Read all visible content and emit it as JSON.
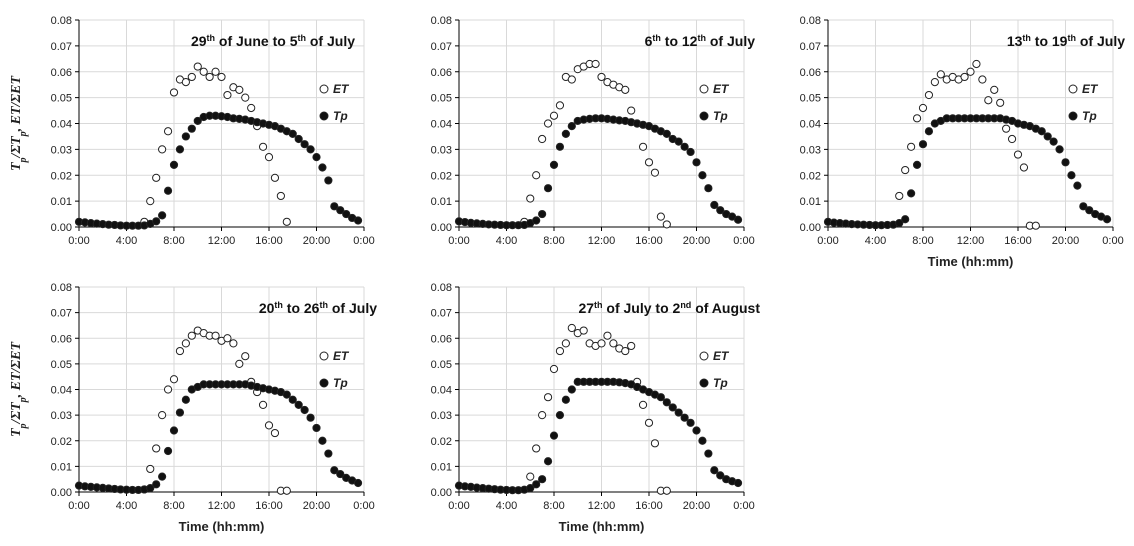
{
  "chart_data": [
    {
      "type": "scatter",
      "title": "29th of June to 5th of July",
      "title_parts": [
        {
          "text": "29"
        },
        {
          "text": "th",
          "sup": true
        },
        {
          "text": " of June to 5"
        },
        {
          "text": "th",
          "sup": true
        },
        {
          "text": " of July"
        }
      ],
      "xlabel": "",
      "ylabel": "Tp/ΣTp, ET/ΣET",
      "ylabel_parts": [
        {
          "text": "T"
        },
        {
          "text": "p",
          "sub": true
        },
        {
          "text": "/ΣT"
        },
        {
          "text": "p",
          "sub": true
        },
        {
          "text": ", ET/ΣET"
        }
      ],
      "xlim": [
        0,
        24
      ],
      "ylim": [
        0,
        0.08
      ],
      "xticks": [
        "0:00",
        "4:00",
        "8:00",
        "12:00",
        "16:00",
        "20:00",
        "0:00"
      ],
      "yticks": [
        "0.00",
        "0.01",
        "0.02",
        "0.03",
        "0.04",
        "0.05",
        "0.06",
        "0.07",
        "0.08"
      ],
      "grid": true,
      "legend": "right",
      "series": [
        {
          "name": "ET",
          "marker": "open-circle",
          "x": [
            5.5,
            6.0,
            6.5,
            7.0,
            7.5,
            8.0,
            8.5,
            9.0,
            9.5,
            10.0,
            10.5,
            11.0,
            11.5,
            12.0,
            12.5,
            13.0,
            13.5,
            14.0,
            14.5,
            15.0,
            15.5,
            16.0,
            16.5,
            17.0,
            17.5
          ],
          "y": [
            0.002,
            0.01,
            0.019,
            0.03,
            0.037,
            0.052,
            0.057,
            0.056,
            0.058,
            0.062,
            0.06,
            0.058,
            0.06,
            0.058,
            0.051,
            0.054,
            0.053,
            0.05,
            0.046,
            0.039,
            0.031,
            0.027,
            0.019,
            0.012,
            0.002
          ]
        },
        {
          "name": "Tp",
          "marker": "filled-circle",
          "x": [
            0,
            0.5,
            1,
            1.5,
            2,
            2.5,
            3,
            3.5,
            4,
            4.5,
            5,
            5.5,
            6,
            6.5,
            7,
            7.5,
            8,
            8.5,
            9,
            9.5,
            10,
            10.5,
            11,
            11.5,
            12,
            12.5,
            13,
            13.5,
            14,
            14.5,
            15,
            15.5,
            16,
            16.5,
            17,
            17.5,
            18,
            18.5,
            19,
            19.5,
            20,
            20.5,
            21,
            21.5,
            22,
            22.5,
            23,
            23.5
          ],
          "y": [
            0.002,
            0.0018,
            0.0015,
            0.0013,
            0.0011,
            0.0009,
            0.0008,
            0.0006,
            0.0005,
            0.0005,
            0.0005,
            0.0006,
            0.0012,
            0.0022,
            0.0045,
            0.014,
            0.024,
            0.03,
            0.035,
            0.038,
            0.041,
            0.0425,
            0.043,
            0.043,
            0.0428,
            0.0425,
            0.042,
            0.0418,
            0.0415,
            0.041,
            0.0405,
            0.04,
            0.0395,
            0.039,
            0.038,
            0.037,
            0.036,
            0.034,
            0.032,
            0.03,
            0.027,
            0.023,
            0.018,
            0.008,
            0.0065,
            0.005,
            0.0035,
            0.0025
          ]
        }
      ]
    },
    {
      "type": "scatter",
      "title": "6th to 12th of July",
      "title_parts": [
        {
          "text": "6"
        },
        {
          "text": "th",
          "sup": true
        },
        {
          "text": " to 12"
        },
        {
          "text": "th",
          "sup": true
        },
        {
          "text": " of July"
        }
      ],
      "xlabel": "",
      "ylabel": "",
      "xlim": [
        0,
        24
      ],
      "ylim": [
        0,
        0.08
      ],
      "xticks": [
        "0:00",
        "4:00",
        "8:00",
        "12:00",
        "16:00",
        "20:00",
        "0:00"
      ],
      "yticks": [
        "0.00",
        "0.01",
        "0.02",
        "0.03",
        "0.04",
        "0.05",
        "0.06",
        "0.07",
        "0.08"
      ],
      "grid": true,
      "legend": "right",
      "series": [
        {
          "name": "ET",
          "marker": "open-circle",
          "x": [
            5.5,
            6.0,
            6.5,
            7.0,
            7.5,
            8.0,
            8.5,
            9.0,
            9.5,
            10.0,
            10.5,
            11.0,
            11.5,
            12.0,
            12.5,
            13.0,
            13.5,
            14.0,
            14.5,
            15.0,
            15.5,
            16.0,
            16.5,
            17.0,
            17.5
          ],
          "y": [
            0.002,
            0.011,
            0.02,
            0.034,
            0.04,
            0.043,
            0.047,
            0.058,
            0.057,
            0.061,
            0.062,
            0.063,
            0.063,
            0.058,
            0.056,
            0.055,
            0.054,
            0.053,
            0.045,
            0.04,
            0.031,
            0.025,
            0.021,
            0.004,
            0.001
          ]
        },
        {
          "name": "Tp",
          "marker": "filled-circle",
          "x": [
            0,
            0.5,
            1,
            1.5,
            2,
            2.5,
            3,
            3.5,
            4,
            4.5,
            5,
            5.5,
            6,
            6.5,
            7,
            7.5,
            8,
            8.5,
            9,
            9.5,
            10,
            10.5,
            11,
            11.5,
            12,
            12.5,
            13,
            13.5,
            14,
            14.5,
            15,
            15.5,
            16,
            16.5,
            17,
            17.5,
            18,
            18.5,
            19,
            19.5,
            20,
            20.5,
            21,
            21.5,
            22,
            22.5,
            23,
            23.5
          ],
          "y": [
            0.0022,
            0.0019,
            0.0016,
            0.0014,
            0.0012,
            0.001,
            0.0009,
            0.0008,
            0.0007,
            0.0007,
            0.0007,
            0.0008,
            0.0015,
            0.0025,
            0.005,
            0.015,
            0.024,
            0.031,
            0.036,
            0.039,
            0.041,
            0.0415,
            0.0418,
            0.042,
            0.042,
            0.0418,
            0.0415,
            0.0412,
            0.041,
            0.0405,
            0.04,
            0.0395,
            0.039,
            0.038,
            0.037,
            0.036,
            0.034,
            0.033,
            0.031,
            0.029,
            0.025,
            0.02,
            0.015,
            0.0085,
            0.0065,
            0.005,
            0.004,
            0.0028
          ]
        }
      ]
    },
    {
      "type": "scatter",
      "title": "13th to 19th of July",
      "title_parts": [
        {
          "text": "13"
        },
        {
          "text": "th",
          "sup": true
        },
        {
          "text": " to 19"
        },
        {
          "text": "th",
          "sup": true
        },
        {
          "text": " of July"
        }
      ],
      "xlabel": "Time (hh:mm)",
      "ylabel": "",
      "xlim": [
        0,
        24
      ],
      "ylim": [
        0,
        0.08
      ],
      "xticks": [
        "0:00",
        "4:00",
        "8:00",
        "12:00",
        "16:00",
        "20:00",
        "0:00"
      ],
      "yticks": [
        "0.00",
        "0.01",
        "0.02",
        "0.03",
        "0.04",
        "0.05",
        "0.06",
        "0.07",
        "0.08"
      ],
      "grid": true,
      "legend": "right",
      "series": [
        {
          "name": "ET",
          "marker": "open-circle",
          "x": [
            6.0,
            6.5,
            7.0,
            7.5,
            8.0,
            8.5,
            9.0,
            9.5,
            10.0,
            10.5,
            11.0,
            11.5,
            12.0,
            12.5,
            13.0,
            13.5,
            14.0,
            14.5,
            15.0,
            15.5,
            16.0,
            16.5,
            17.0,
            17.5
          ],
          "y": [
            0.012,
            0.022,
            0.031,
            0.042,
            0.046,
            0.051,
            0.056,
            0.059,
            0.057,
            0.058,
            0.057,
            0.058,
            0.06,
            0.063,
            0.057,
            0.049,
            0.053,
            0.048,
            0.038,
            0.034,
            0.028,
            0.023,
            0.0005,
            0.0005
          ]
        },
        {
          "name": "Tp",
          "marker": "filled-circle",
          "x": [
            0,
            0.5,
            1,
            1.5,
            2,
            2.5,
            3,
            3.5,
            4,
            4.5,
            5,
            5.5,
            6,
            6.5,
            7,
            7.5,
            8,
            8.5,
            9,
            9.5,
            10,
            10.5,
            11,
            11.5,
            12,
            12.5,
            13,
            13.5,
            14,
            14.5,
            15,
            15.5,
            16,
            16.5,
            17,
            17.5,
            18,
            18.5,
            19,
            19.5,
            20,
            20.5,
            21,
            21.5,
            22,
            22.5,
            23,
            23.5
          ],
          "y": [
            0.002,
            0.0017,
            0.0015,
            0.0013,
            0.0011,
            0.001,
            0.0009,
            0.0008,
            0.0007,
            0.0007,
            0.0008,
            0.0009,
            0.0015,
            0.003,
            0.013,
            0.024,
            0.032,
            0.037,
            0.04,
            0.041,
            0.042,
            0.042,
            0.042,
            0.042,
            0.042,
            0.042,
            0.042,
            0.042,
            0.042,
            0.042,
            0.0415,
            0.041,
            0.04,
            0.0395,
            0.039,
            0.038,
            0.037,
            0.035,
            0.033,
            0.03,
            0.025,
            0.02,
            0.016,
            0.008,
            0.0065,
            0.005,
            0.004,
            0.003
          ]
        }
      ]
    },
    {
      "type": "scatter",
      "title": "20th to 26th of July",
      "title_parts": [
        {
          "text": "20"
        },
        {
          "text": "th",
          "sup": true
        },
        {
          "text": " to 26"
        },
        {
          "text": "th",
          "sup": true
        },
        {
          "text": " of July"
        }
      ],
      "xlabel": "Time (hh:mm)",
      "ylabel": "Tp/ΣTp, ET/ΣET",
      "ylabel_parts": [
        {
          "text": "T"
        },
        {
          "text": "p",
          "sub": true
        },
        {
          "text": "/ΣT"
        },
        {
          "text": "p",
          "sub": true
        },
        {
          "text": ", ET/ΣET"
        }
      ],
      "xlim": [
        0,
        24
      ],
      "ylim": [
        0,
        0.08
      ],
      "xticks": [
        "0:00",
        "4:00",
        "8:00",
        "12:00",
        "16:00",
        "20:00",
        "0:00"
      ],
      "yticks": [
        "0.00",
        "0.01",
        "0.02",
        "0.03",
        "0.04",
        "0.05",
        "0.06",
        "0.07",
        "0.08"
      ],
      "grid": true,
      "legend": "right",
      "series": [
        {
          "name": "ET",
          "marker": "open-circle",
          "x": [
            5.5,
            6.0,
            6.5,
            7.0,
            7.5,
            8.0,
            8.5,
            9.0,
            9.5,
            10.0,
            10.5,
            11.0,
            11.5,
            12.0,
            12.5,
            13.0,
            13.5,
            14.0,
            14.5,
            15.0,
            15.5,
            16.0,
            16.5,
            17.0,
            17.5
          ],
          "y": [
            0.001,
            0.009,
            0.017,
            0.03,
            0.04,
            0.044,
            0.055,
            0.058,
            0.061,
            0.063,
            0.062,
            0.061,
            0.061,
            0.059,
            0.06,
            0.058,
            0.05,
            0.053,
            0.043,
            0.039,
            0.034,
            0.026,
            0.023,
            0.0005,
            0.0005
          ]
        },
        {
          "name": "Tp",
          "marker": "filled-circle",
          "x": [
            0,
            0.5,
            1,
            1.5,
            2,
            2.5,
            3,
            3.5,
            4,
            4.5,
            5,
            5.5,
            6,
            6.5,
            7,
            7.5,
            8,
            8.5,
            9,
            9.5,
            10,
            10.5,
            11,
            11.5,
            12,
            12.5,
            13,
            13.5,
            14,
            14.5,
            15,
            15.5,
            16,
            16.5,
            17,
            17.5,
            18,
            18.5,
            19,
            19.5,
            20,
            20.5,
            21,
            21.5,
            22,
            22.5,
            23,
            23.5
          ],
          "y": [
            0.0025,
            0.0022,
            0.002,
            0.0018,
            0.0016,
            0.0014,
            0.0012,
            0.001,
            0.0009,
            0.0008,
            0.0008,
            0.001,
            0.0015,
            0.003,
            0.006,
            0.016,
            0.024,
            0.031,
            0.036,
            0.04,
            0.041,
            0.042,
            0.042,
            0.042,
            0.042,
            0.042,
            0.042,
            0.042,
            0.042,
            0.0415,
            0.041,
            0.0405,
            0.04,
            0.0395,
            0.039,
            0.038,
            0.036,
            0.034,
            0.032,
            0.029,
            0.025,
            0.02,
            0.015,
            0.0085,
            0.007,
            0.0055,
            0.0045,
            0.0035
          ]
        }
      ]
    },
    {
      "type": "scatter",
      "title": "27th of July to 2nd of August",
      "title_parts": [
        {
          "text": "27"
        },
        {
          "text": "th",
          "sup": true
        },
        {
          "text": " of July to 2"
        },
        {
          "text": "nd",
          "sup": true
        },
        {
          "text": " of August"
        }
      ],
      "xlabel": "Time (hh:mm)",
      "ylabel": "",
      "xlim": [
        0,
        24
      ],
      "ylim": [
        0,
        0.08
      ],
      "xticks": [
        "0:00",
        "4:00",
        "8:00",
        "12:00",
        "16:00",
        "20:00",
        "0:00"
      ],
      "yticks": [
        "0.00",
        "0.01",
        "0.02",
        "0.03",
        "0.04",
        "0.05",
        "0.06",
        "0.07",
        "0.08"
      ],
      "grid": true,
      "legend": "right",
      "series": [
        {
          "name": "ET",
          "marker": "open-circle",
          "x": [
            6.0,
            6.5,
            7.0,
            7.5,
            8.0,
            8.5,
            9.0,
            9.5,
            10.0,
            10.5,
            11.0,
            11.5,
            12.0,
            12.5,
            13.0,
            13.5,
            14.0,
            14.5,
            15.0,
            15.5,
            16.0,
            16.5,
            17.0,
            17.5
          ],
          "y": [
            0.006,
            0.017,
            0.03,
            0.037,
            0.048,
            0.055,
            0.058,
            0.064,
            0.062,
            0.063,
            0.058,
            0.057,
            0.058,
            0.061,
            0.058,
            0.056,
            0.055,
            0.057,
            0.043,
            0.034,
            0.027,
            0.019,
            0.0005,
            0.0005
          ]
        },
        {
          "name": "Tp",
          "marker": "filled-circle",
          "x": [
            0,
            0.5,
            1,
            1.5,
            2,
            2.5,
            3,
            3.5,
            4,
            4.5,
            5,
            5.5,
            6,
            6.5,
            7,
            7.5,
            8,
            8.5,
            9,
            9.5,
            10,
            10.5,
            11,
            11.5,
            12,
            12.5,
            13,
            13.5,
            14,
            14.5,
            15,
            15.5,
            16,
            16.5,
            17,
            17.5,
            18,
            18.5,
            19,
            19.5,
            20,
            20.5,
            21,
            21.5,
            22,
            22.5,
            23,
            23.5
          ],
          "y": [
            0.0025,
            0.0022,
            0.002,
            0.0017,
            0.0015,
            0.0013,
            0.0011,
            0.0009,
            0.0008,
            0.0007,
            0.0007,
            0.0009,
            0.0015,
            0.003,
            0.005,
            0.012,
            0.022,
            0.03,
            0.036,
            0.04,
            0.043,
            0.043,
            0.043,
            0.043,
            0.043,
            0.043,
            0.043,
            0.0428,
            0.0425,
            0.042,
            0.041,
            0.04,
            0.039,
            0.038,
            0.037,
            0.035,
            0.033,
            0.031,
            0.029,
            0.027,
            0.024,
            0.02,
            0.015,
            0.0085,
            0.0065,
            0.005,
            0.0042,
            0.0035
          ]
        }
      ]
    }
  ],
  "colors": {
    "grid": "#d9d9d9",
    "axis": "#000000",
    "marker_stroke": "#222222",
    "marker_fill_open": "#ffffff",
    "marker_fill_filled": "#111111"
  }
}
